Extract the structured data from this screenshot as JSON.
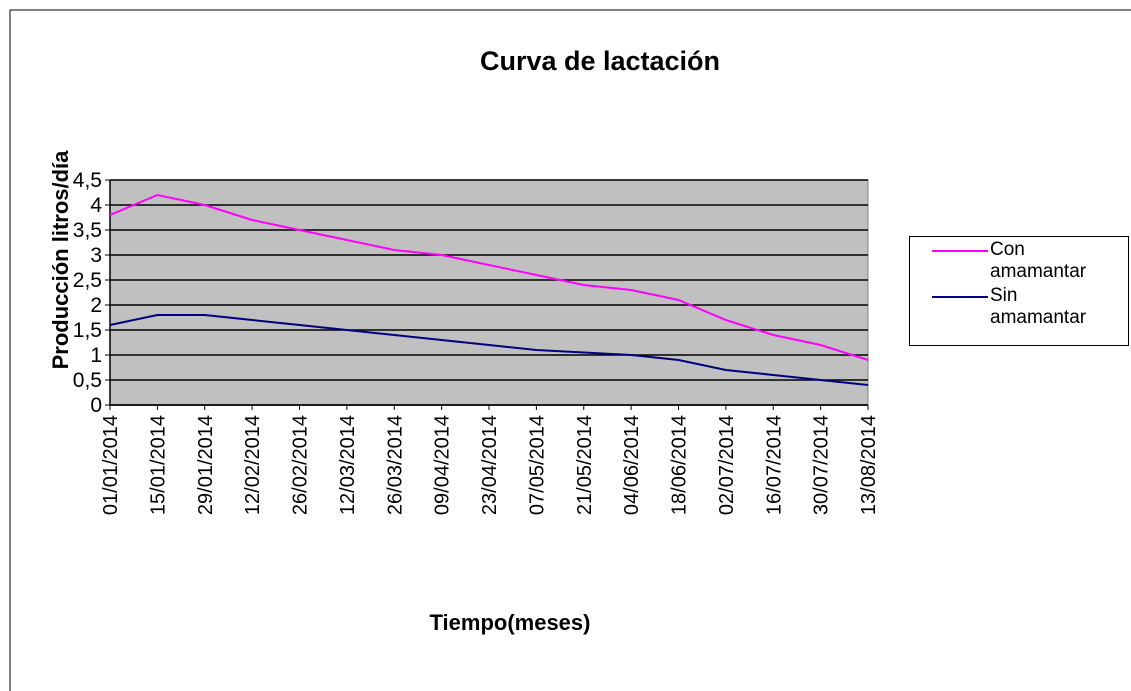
{
  "chart_data": {
    "type": "line",
    "title": "Curva de lactación",
    "x_label": "Tiempo(meses)",
    "y_label": "Producción litros/día",
    "categories": [
      "01/01/2014",
      "15/01/2014",
      "29/01/2014",
      "12/02/2014",
      "26/02/2014",
      "12/03/2014",
      "26/03/2014",
      "09/04/2014",
      "23/04/2014",
      "07/05/2014",
      "21/05/2014",
      "04/06/2014",
      "18/06/2014",
      "02/07/2014",
      "16/07/2014",
      "30/07/2014",
      "13/08/2014"
    ],
    "series": [
      {
        "name": "Con amamantar",
        "color": "#ff00ff",
        "values": [
          3.8,
          4.2,
          4.0,
          3.7,
          3.5,
          3.3,
          3.1,
          3.0,
          2.8,
          2.6,
          2.4,
          2.3,
          2.1,
          1.7,
          1.4,
          1.2,
          0.9
        ]
      },
      {
        "name": "Sin amamantar",
        "color": "#000080",
        "values": [
          1.6,
          1.8,
          1.8,
          1.7,
          1.6,
          1.5,
          1.4,
          1.3,
          1.2,
          1.1,
          1.05,
          1.0,
          0.9,
          0.7,
          0.6,
          0.5,
          0.4
        ]
      }
    ],
    "ylim": [
      0,
      4.5
    ],
    "yticks": [
      0,
      {
        "value": 0.5,
        "label": "0,5"
      },
      1,
      {
        "value": 1.5,
        "label": "1,5"
      },
      2,
      {
        "value": 2.5,
        "label": "2,5"
      },
      3,
      {
        "value": 3.5,
        "label": "3,5"
      },
      4,
      {
        "value": 4.5,
        "label": "4,5"
      }
    ],
    "grid": true,
    "plot_background": "#c0c0c0",
    "legend": "right"
  }
}
